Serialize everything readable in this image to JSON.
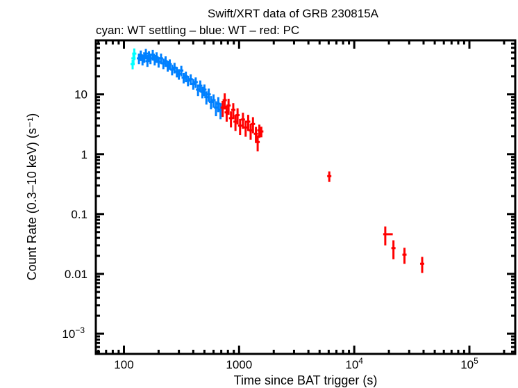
{
  "chart_data": {
    "type": "scatter",
    "title": "Swift/XRT data of GRB 230815A",
    "subtitle": "cyan: WT settling – blue: WT – red: PC",
    "xlabel": "Time since BAT trigger (s)",
    "ylabel": "Count Rate (0.3–10 keV) (s⁻¹)",
    "xscale": "log",
    "yscale": "log",
    "xlim": [
      57,
      250000
    ],
    "ylim": [
      0.00046,
      80
    ],
    "grid": false,
    "x_ticks": [
      {
        "value": 100,
        "label": "100",
        "sup": ""
      },
      {
        "value": 1000,
        "label": "1000",
        "sup": ""
      },
      {
        "value": 10000,
        "label": "10",
        "sup": "4"
      },
      {
        "value": 100000,
        "label": "10",
        "sup": "5"
      }
    ],
    "y_ticks": [
      {
        "value": 10,
        "label": "10",
        "sup": ""
      },
      {
        "value": 1,
        "label": "1",
        "sup": ""
      },
      {
        "value": 0.1,
        "label": "0.1",
        "sup": ""
      },
      {
        "value": 0.01,
        "label": "0.01",
        "sup": ""
      },
      {
        "value": 0.001,
        "label": "10",
        "sup": "−3"
      }
    ],
    "series": [
      {
        "mode": "WT settling",
        "color": "#00ffff",
        "points": [
          [
            119,
            32,
            0.18
          ],
          [
            121,
            40,
            0.2
          ],
          [
            123,
            48,
            0.22
          ]
        ]
      },
      {
        "mode": "WT",
        "color": "#0080ff",
        "points": [
          [
            135,
            40,
            0.2
          ],
          [
            140,
            45,
            0.2
          ],
          [
            145,
            38,
            0.2
          ],
          [
            150,
            42,
            0.2
          ],
          [
            155,
            48,
            0.2
          ],
          [
            160,
            36,
            0.2
          ],
          [
            165,
            44,
            0.2
          ],
          [
            170,
            40,
            0.2
          ],
          [
            178,
            46,
            0.2
          ],
          [
            185,
            38,
            0.2
          ],
          [
            192,
            42,
            0.2
          ],
          [
            200,
            35,
            0.2
          ],
          [
            210,
            40,
            0.2
          ],
          [
            220,
            33,
            0.2
          ],
          [
            230,
            36,
            0.2
          ],
          [
            240,
            30,
            0.2
          ],
          [
            250,
            32,
            0.2
          ],
          [
            262,
            26,
            0.2
          ],
          [
            275,
            28,
            0.2
          ],
          [
            288,
            24,
            0.2
          ],
          [
            300,
            22,
            0.2
          ],
          [
            315,
            25,
            0.2
          ],
          [
            330,
            19,
            0.2
          ],
          [
            345,
            20,
            0.2
          ],
          [
            360,
            17,
            0.2
          ],
          [
            380,
            18,
            0.2
          ],
          [
            400,
            15,
            0.2
          ],
          [
            420,
            16,
            0.2
          ],
          [
            440,
            12,
            0.22
          ],
          [
            460,
            14,
            0.22
          ],
          [
            480,
            11,
            0.22
          ],
          [
            500,
            12,
            0.22
          ],
          [
            520,
            9,
            0.25
          ],
          [
            545,
            10,
            0.25
          ],
          [
            570,
            7.5,
            0.25
          ],
          [
            600,
            8,
            0.25
          ],
          [
            630,
            6,
            0.28
          ],
          [
            660,
            7,
            0.28
          ],
          [
            690,
            5.5,
            0.3
          ]
        ]
      },
      {
        "mode": "PC",
        "color": "#ff0000",
        "points": [
          [
            720,
            6,
            0.3,
            0
          ],
          [
            750,
            8,
            0.3,
            0
          ],
          [
            780,
            5,
            0.3,
            0
          ],
          [
            810,
            6.5,
            0.3,
            0
          ],
          [
            850,
            4,
            0.3,
            0
          ],
          [
            890,
            5.5,
            0.3,
            0
          ],
          [
            930,
            3.5,
            0.3,
            0
          ],
          [
            970,
            4.5,
            0.3,
            0
          ],
          [
            1020,
            3,
            0.3,
            0
          ],
          [
            1080,
            3.8,
            0.3,
            0
          ],
          [
            1140,
            2.8,
            0.3,
            0
          ],
          [
            1200,
            3.5,
            0.3,
            0
          ],
          [
            1260,
            2.5,
            0.3,
            0
          ],
          [
            1320,
            3.2,
            0.3,
            0
          ],
          [
            1400,
            2.2,
            0.3,
            0
          ],
          [
            1450,
            1.6,
            0.3,
            0
          ],
          [
            1500,
            2.5,
            0.25,
            0
          ],
          [
            1560,
            2.4,
            0.2,
            0
          ],
          [
            6070,
            0.43,
            0.2,
            0
          ],
          [
            18600,
            0.046,
            0.35,
            3000
          ],
          [
            21900,
            0.027,
            0.35,
            0
          ],
          [
            27300,
            0.021,
            0.3,
            0
          ],
          [
            38900,
            0.0148,
            0.3,
            0
          ]
        ]
      }
    ]
  }
}
